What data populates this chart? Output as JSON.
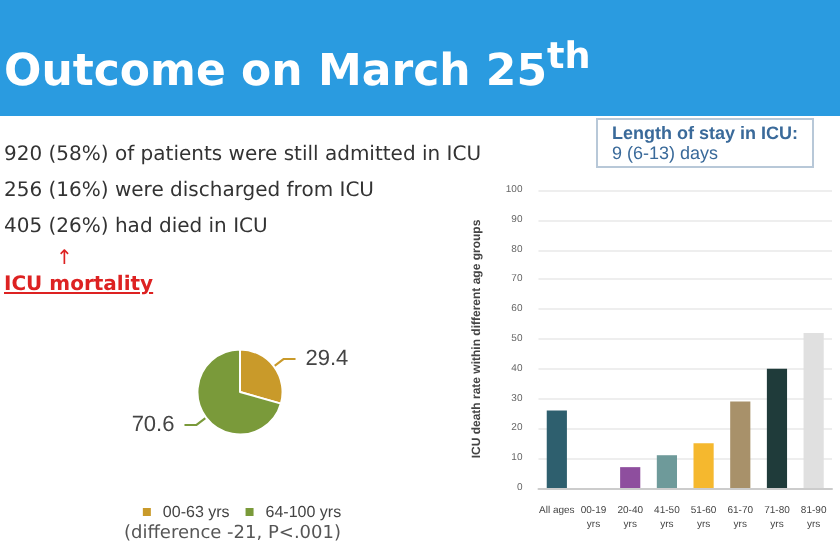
{
  "chart_data": [
    {
      "type": "other",
      "title": "Outcome on March 25$^{th}$",
      "annotations": [
        "920 (58%) of patients were still admitted in ICU",
        "256 (16%) were discharged from ICU",
        "405 (26%) had died in ICU",
        "↑",
        "ICU mortality"
      ]
    },
    {
      "type": "pie",
      "categories": [
        "00-63 yrs",
        "64-100 yrs"
      ],
      "values": [
        29.4,
        70.6
      ],
      "colors": [
        "#c99a2a",
        "#7a9a3a"
      ],
      "data_labels": true,
      "legend": "bottom",
      "annotations": [
        "(difference -21, P<.001)"
      ]
    },
    {
      "type": "bar",
      "title": "Length of stay in ICU:",
      "subtitle": "9 (6-13) days",
      "ylabel": "ICU death rate within different age groups",
      "categories": [
        "All ages",
        "00-19\nyrs",
        "20-40\nyrs",
        "41-50\nyrs",
        "51-60\nyrs",
        "61-70\nyrs",
        "71-80\nyrs",
        "81-90\nyrs"
      ],
      "values": [
        26,
        0,
        7,
        11,
        15,
        29,
        40,
        52
      ],
      "colors": [
        "#2e5f6e",
        "#888888",
        "#8e4e9e",
        "#6e9a9a",
        "#f5b82e",
        "#a8916a",
        "#1f3b3a",
        "#e0e0e0"
      ],
      "ylim": [
        0,
        100
      ],
      "yticks": [
        0,
        10,
        20,
        30,
        40,
        50,
        60,
        70,
        80,
        90,
        100
      ],
      "grid": "y"
    }
  ]
}
